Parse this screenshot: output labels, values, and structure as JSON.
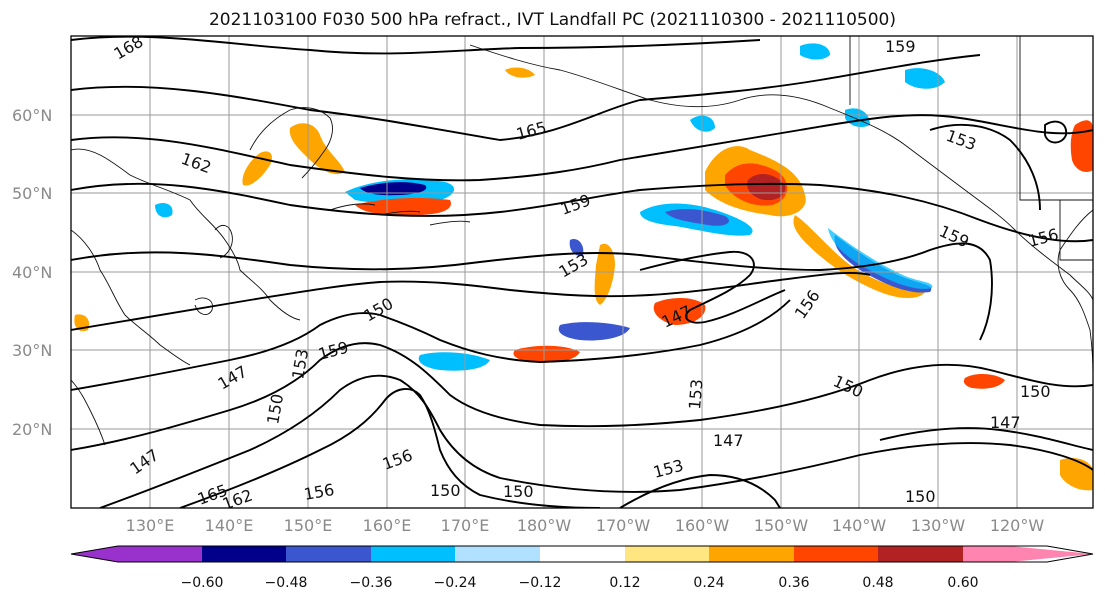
{
  "title": "2021103100 F030 500 hPa refract., IVT Landfall PC (2021110300 - 2021110500)",
  "lat_labels": [
    "60°N",
    "50°N",
    "40°N",
    "30°N",
    "20°N"
  ],
  "lon_labels": [
    "130°E",
    "140°E",
    "150°E",
    "160°E",
    "170°E",
    "180°W",
    "170°W",
    "160°W",
    "150°W",
    "140°W",
    "130°W",
    "120°W"
  ],
  "contour_labels": [
    "168",
    "165",
    "162",
    "159",
    "159",
    "159",
    "156",
    "156",
    "153",
    "153",
    "153",
    "153",
    "150",
    "150",
    "150",
    "150",
    "150",
    "150",
    "147",
    "147",
    "147",
    "147",
    "147",
    "165",
    "162",
    "156",
    "159",
    "156",
    "153",
    "150"
  ],
  "colorbar": {
    "colors": [
      "#9932cc",
      "#00008b",
      "#3a57cf",
      "#00bfff",
      "#b0e2ff",
      "#ffffff",
      "#ffe680",
      "#ffa500",
      "#ff4500",
      "#b22222",
      "#ff85b0"
    ],
    "tick_labels": [
      "−0.60",
      "−0.48",
      "−0.36",
      "−0.24",
      "−0.12",
      "0.12",
      "0.24",
      "0.36",
      "0.48",
      "0.60"
    ]
  },
  "chart_data": {
    "type": "heatmap",
    "title": "2021103100 F030 500 hPa refract., IVT Landfall PC (2021110300 - 2021110500)",
    "x_ticks": [
      "130°E",
      "140°E",
      "150°E",
      "160°E",
      "170°E",
      "180°W",
      "170°W",
      "160°W",
      "150°W",
      "140°W",
      "130°W",
      "120°W"
    ],
    "y_ticks": [
      "60°N",
      "50°N",
      "40°N",
      "30°N",
      "20°N"
    ],
    "colorbar_levels": [
      -0.6,
      -0.48,
      -0.36,
      -0.24,
      -0.12,
      0.12,
      0.24,
      0.36,
      0.48,
      0.6
    ],
    "contour_levels": [
      147,
      150,
      153,
      156,
      159,
      162,
      165,
      168
    ],
    "grid": true
  }
}
